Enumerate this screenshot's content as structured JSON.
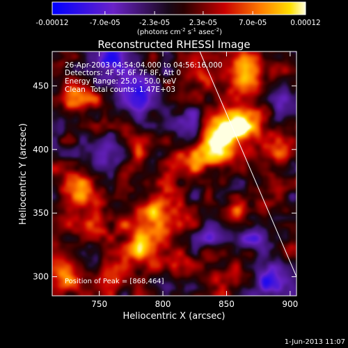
{
  "chart_data": {
    "type": "heatmap",
    "title": "Reconstructed RHESSI Image",
    "xlabel": "Heliocentric X (arcsec)",
    "ylabel": "Heliocentric Y (arcsec)",
    "xlim": [
      713,
      905
    ],
    "ylim": [
      285,
      477
    ],
    "x_ticks": [
      750,
      800,
      850,
      900
    ],
    "y_ticks": [
      300,
      350,
      400,
      450
    ],
    "colorbar": {
      "label_main": "(photons cm",
      "label_exp1": "-2",
      "label_mid": " s",
      "label_exp2": "-1",
      "label_end": " asec",
      "label_exp3": "-2",
      "label_close": ")",
      "min": -0.00012,
      "max": 0.00012,
      "tick_values": [
        -0.00012,
        -7e-05,
        -2.3e-05,
        2.3e-05,
        7e-05,
        0.00012
      ],
      "tick_labels": [
        "-0.00012",
        "-7.0e-05",
        "-2.3e-05",
        "2.3e-05",
        "7.0e-05",
        "0.00012"
      ],
      "colormap": "blue-black-red-yellow-white"
    },
    "annotations": {
      "time_range": "26-Apr-2003 04:54:04.000 to 04:56:16.000",
      "detectors": "Detectors: 4F 5F 6F 7F 8F, Att 0",
      "energy": "Energy Range: 25.0 - 50.0 keV",
      "clean": "Clean",
      "counts": "Total counts: 1.47E+03",
      "peak": "Position of Peak = [868,464]"
    },
    "peak_position": [
      868,
      464
    ],
    "limb_line": [
      [
        829,
        477
      ],
      [
        905,
        300
      ]
    ],
    "sources": [
      {
        "x": 866,
        "y": 462,
        "a": 1.0,
        "s": 11
      },
      {
        "x": 862,
        "y": 418,
        "a": 0.85,
        "s": 10
      },
      {
        "x": 846,
        "y": 410,
        "a": 0.8,
        "s": 11
      },
      {
        "x": 836,
        "y": 395,
        "a": 0.75,
        "s": 10
      },
      {
        "x": 800,
        "y": 348,
        "a": 0.75,
        "s": 13
      },
      {
        "x": 786,
        "y": 326,
        "a": 0.7,
        "s": 12
      },
      {
        "x": 734,
        "y": 440,
        "a": 0.65,
        "s": 10
      },
      {
        "x": 731,
        "y": 368,
        "a": 0.55,
        "s": 11
      },
      {
        "x": 748,
        "y": 343,
        "a": 0.5,
        "s": 11
      },
      {
        "x": 720,
        "y": 300,
        "a": 0.7,
        "s": 12
      },
      {
        "x": 779,
        "y": 406,
        "a": 0.5,
        "s": 9
      },
      {
        "x": 812,
        "y": 390,
        "a": 0.45,
        "s": 8
      },
      {
        "x": 830,
        "y": 458,
        "a": 0.5,
        "s": 9
      },
      {
        "x": 758,
        "y": 300,
        "a": 0.45,
        "s": 9
      },
      {
        "x": 812,
        "y": 312,
        "a": 0.5,
        "s": 9
      },
      {
        "x": 846,
        "y": 300,
        "a": 0.35,
        "s": 8
      },
      {
        "x": 862,
        "y": 352,
        "a": 0.4,
        "s": 9
      },
      {
        "x": 890,
        "y": 404,
        "a": 0.45,
        "s": 10
      },
      {
        "x": 895,
        "y": 326,
        "a": 0.3,
        "s": 9
      },
      {
        "x": 767,
        "y": 458,
        "a": 0.15,
        "s": 8
      },
      {
        "x": 760,
        "y": 468,
        "a": -0.85,
        "s": 13
      },
      {
        "x": 785,
        "y": 440,
        "a": -0.6,
        "s": 12
      },
      {
        "x": 756,
        "y": 398,
        "a": -0.45,
        "s": 9
      },
      {
        "x": 818,
        "y": 420,
        "a": -0.45,
        "s": 9
      },
      {
        "x": 872,
        "y": 330,
        "a": -0.55,
        "s": 9
      },
      {
        "x": 885,
        "y": 295,
        "a": -0.7,
        "s": 9
      },
      {
        "x": 840,
        "y": 332,
        "a": -0.4,
        "s": 8
      },
      {
        "x": 898,
        "y": 440,
        "a": -0.4,
        "s": 9
      },
      {
        "x": 820,
        "y": 292,
        "a": -0.35,
        "s": 8
      },
      {
        "x": 742,
        "y": 310,
        "a": -0.3,
        "s": 8
      }
    ]
  },
  "footer": {
    "date": "1-Jun-2013 11:07"
  }
}
